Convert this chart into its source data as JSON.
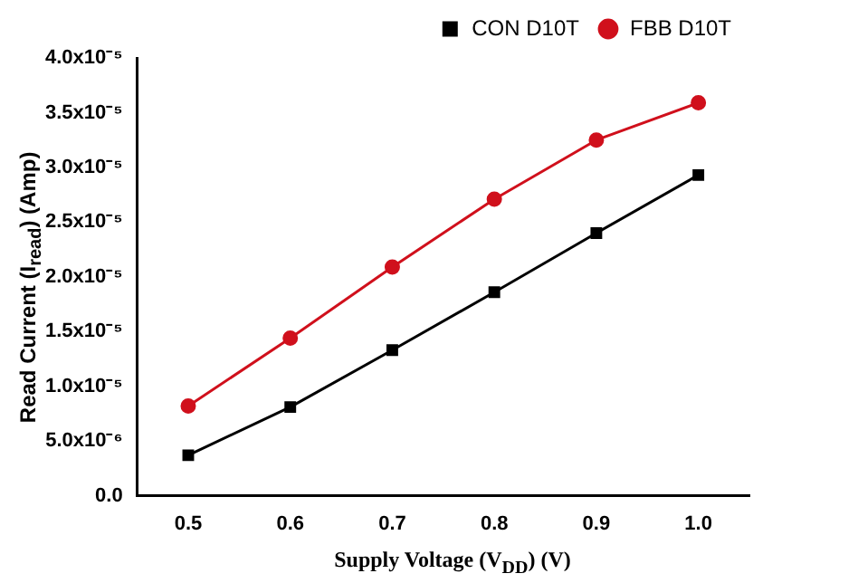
{
  "chart_data": {
    "type": "line",
    "xlabel": "Supply Voltage (V$_{DD}$) (V)",
    "ylabel": "Read Current (I$_{read}$) (Amp)",
    "x": [
      0.5,
      0.6,
      0.7,
      0.8,
      0.9,
      1.0
    ],
    "series": [
      {
        "name": "CON D10T",
        "color": "#000000",
        "marker": "square",
        "values": [
          3.7e-06,
          8.1e-06,
          1.33e-05,
          1.86e-05,
          2.4e-05,
          2.93e-05
        ]
      },
      {
        "name": "FBB D10T",
        "color": "#d0101c",
        "marker": "circle",
        "values": [
          8.2e-06,
          1.44e-05,
          2.09e-05,
          2.71e-05,
          3.25e-05,
          3.59e-05
        ]
      }
    ],
    "xlim": [
      0.45,
      1.05
    ],
    "xticks": [
      {
        "value": 0.5,
        "label": "0.5"
      },
      {
        "value": 0.6,
        "label": "0.6"
      },
      {
        "value": 0.7,
        "label": "0.7"
      },
      {
        "value": 0.8,
        "label": "0.8"
      },
      {
        "value": 0.9,
        "label": "0.9"
      },
      {
        "value": 1.0,
        "label": "1.0"
      }
    ],
    "ylim": [
      0,
      4e-05
    ],
    "yticks": [
      {
        "value": 0,
        "label": "0.0"
      },
      {
        "value": 5e-06,
        "label": "5.0x10⁻⁶"
      },
      {
        "value": 1e-05,
        "label": "1.0x10⁻⁵"
      },
      {
        "value": 1.5e-05,
        "label": "1.5x10⁻⁵"
      },
      {
        "value": 2e-05,
        "label": "2.0x10⁻⁵"
      },
      {
        "value": 2.5e-05,
        "label": "2.5x10⁻⁵"
      },
      {
        "value": 3e-05,
        "label": "3.0x10⁻⁵"
      },
      {
        "value": 3.5e-05,
        "label": "3.5x10⁻⁵"
      },
      {
        "value": 4e-05,
        "label": "4.0x10⁻⁵"
      }
    ],
    "grid": false,
    "legend": "top right",
    "line_style": "solid"
  }
}
